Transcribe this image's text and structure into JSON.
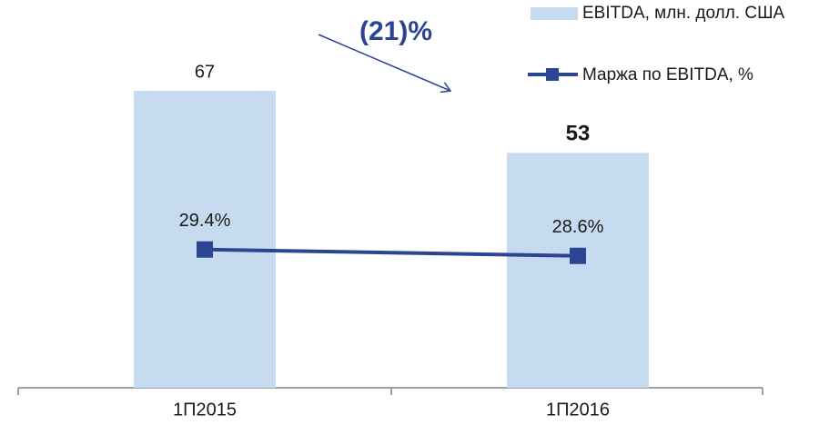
{
  "chart_data": {
    "type": "combo",
    "categories": [
      "1П2015",
      "1П2016"
    ],
    "series": [
      {
        "name": "EBITDA, млн. долл. США",
        "type": "bar",
        "color": "#c6dbf0",
        "values": [
          67,
          53
        ]
      },
      {
        "name": "Маржа по EBITDA, %",
        "type": "line",
        "axis": "y2",
        "color": "#2c4590",
        "values": [
          29.4,
          28.6
        ],
        "value_labels": [
          "29.4%",
          "28.6%"
        ]
      }
    ],
    "ylim": [
      0,
      87.5
    ],
    "y2lim": [
      12,
      60.8
    ],
    "annotation": "(21)%"
  }
}
